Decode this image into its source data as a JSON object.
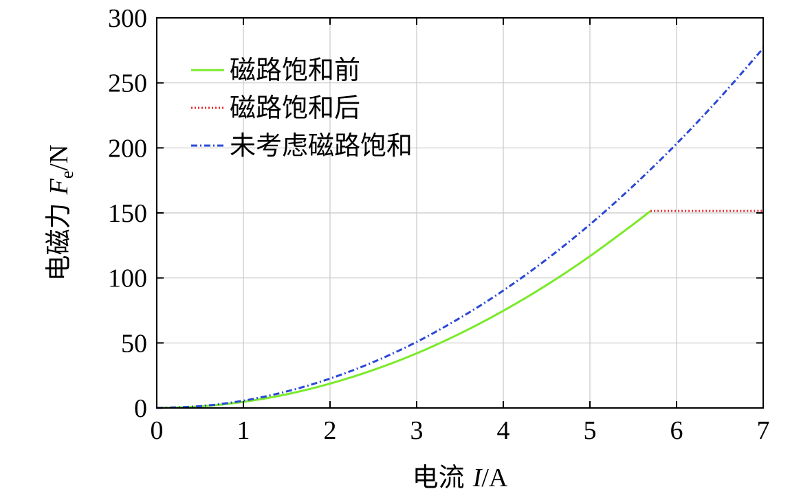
{
  "chart_data": {
    "type": "line",
    "title": "",
    "xlabel": {
      "prefix": "电流 ",
      "symbol": "I",
      "unit": "/A"
    },
    "ylabel": {
      "prefix": "电磁力 ",
      "symbol": "F",
      "subscript": "e",
      "unit": "/N"
    },
    "xlim": [
      0,
      7
    ],
    "ylim": [
      0,
      300
    ],
    "xticks": [
      0,
      1,
      2,
      3,
      4,
      5,
      6,
      7
    ],
    "yticks": [
      0,
      50,
      100,
      150,
      200,
      250,
      300
    ],
    "grid": true,
    "legend_position": "top-left",
    "series": [
      {
        "name": "磁路饱和前",
        "color": "#7aea2a",
        "style": "solid",
        "x": [
          0,
          0.5,
          1,
          1.5,
          2,
          2.5,
          3,
          3.5,
          4,
          4.5,
          5,
          5.5,
          5.7
        ],
        "y": [
          0,
          1.2,
          4.7,
          10.5,
          18.7,
          29.2,
          42.0,
          57.2,
          74.7,
          94.5,
          116.7,
          141.2,
          151.5
        ]
      },
      {
        "name": "磁路饱和后",
        "color": "#e8262a",
        "style": "dotted",
        "x": [
          5.7,
          6,
          6.5,
          7
        ],
        "y": [
          151.5,
          151.5,
          151.5,
          151.5
        ]
      },
      {
        "name": "未考虑磁路饱和",
        "color": "#2a47d6",
        "style": "dashdot",
        "x": [
          0,
          0.5,
          1,
          1.5,
          2,
          2.5,
          3,
          3.5,
          4,
          4.5,
          5,
          5.5,
          6,
          6.5,
          7
        ],
        "y": [
          0,
          1.4,
          5.6,
          12.7,
          22.6,
          35.3,
          50.8,
          69.2,
          90.3,
          114.3,
          141.1,
          170.8,
          203.2,
          238.5,
          276.6
        ]
      }
    ]
  }
}
